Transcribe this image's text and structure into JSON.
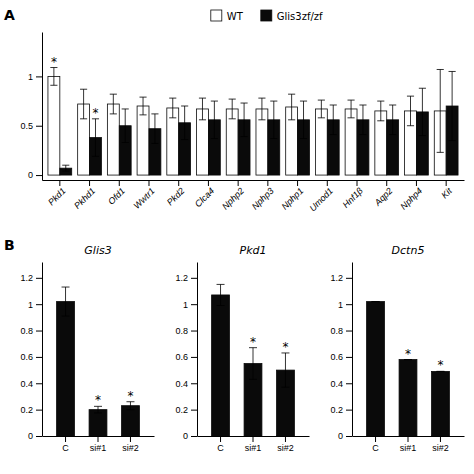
{
  "chart_data": [
    {
      "type": "bar",
      "categories": [
        "Pkd1",
        "Pkhd1",
        "Ofd1",
        "Wwtr1",
        "Pkd2",
        "Clca4",
        "Nphp2",
        "Nphp3",
        "Nphp1",
        "Umod1",
        "Hnf1β",
        "Aqp2",
        "Nphp4",
        "Kit"
      ],
      "series": [
        {
          "name": "WT",
          "color": "#ffffff",
          "values": [
            1.0,
            0.72,
            0.72,
            0.7,
            0.68,
            0.67,
            0.67,
            0.67,
            0.69,
            0.67,
            0.67,
            0.65,
            0.65,
            0.65
          ],
          "errors": [
            0.09,
            0.15,
            0.1,
            0.09,
            0.1,
            0.11,
            0.1,
            0.11,
            0.13,
            0.09,
            0.09,
            0.1,
            0.15,
            0.42
          ]
        },
        {
          "name": "Glis3zf/zf",
          "color": "#0a0a0a",
          "values": [
            0.07,
            0.38,
            0.5,
            0.47,
            0.53,
            0.56,
            0.56,
            0.56,
            0.56,
            0.56,
            0.56,
            0.56,
            0.64,
            0.7
          ],
          "errors": [
            0.03,
            0.19,
            0.17,
            0.15,
            0.17,
            0.19,
            0.17,
            0.19,
            0.19,
            0.15,
            0.15,
            0.15,
            0.24,
            0.35
          ]
        }
      ],
      "annotations": [
        {
          "text": "A"
        },
        {
          "text": "*",
          "category": "Pkd1",
          "series": "WT"
        },
        {
          "text": "*",
          "category": "Pkhd1",
          "series": "Glis3zf/zf"
        }
      ],
      "ylim": [
        -0.05,
        1.45
      ],
      "yticks": [
        0,
        0.5,
        1
      ],
      "legend": "top"
    },
    {
      "type": "bar",
      "title": "Glis3",
      "categories": [
        "C",
        "si#1",
        "si#2"
      ],
      "values": [
        1.02,
        0.2,
        0.23
      ],
      "errors": [
        0.11,
        0.025,
        0.03
      ],
      "color": "#0a0a0a",
      "annotations": [
        {
          "text": "B"
        },
        {
          "text": "*",
          "category": "si#1"
        },
        {
          "text": "*",
          "category": "si#2"
        }
      ],
      "ylim": [
        0,
        1.32
      ],
      "yticks": [
        0,
        0.2,
        0.4,
        0.6,
        0.8,
        1,
        1.2
      ]
    },
    {
      "type": "bar",
      "title": "Pkd1",
      "categories": [
        "C",
        "si#1",
        "si#2"
      ],
      "values": [
        1.07,
        0.55,
        0.5
      ],
      "errors": [
        0.08,
        0.12,
        0.13
      ],
      "color": "#0a0a0a",
      "annotations": [
        {
          "text": "*",
          "category": "si#1"
        },
        {
          "text": "*",
          "category": "si#2"
        }
      ],
      "ylim": [
        0,
        1.32
      ],
      "yticks": [
        0,
        0.2,
        0.4,
        0.6,
        0.8,
        1,
        1.2
      ]
    },
    {
      "type": "bar",
      "title": "Dctn5",
      "categories": [
        "C",
        "si#1",
        "si#2"
      ],
      "values": [
        1.02,
        0.58,
        0.49
      ],
      "errors": [
        0.0,
        0.0,
        0.0
      ],
      "color": "#0a0a0a",
      "annotations": [
        {
          "text": "*",
          "category": "si#1"
        },
        {
          "text": "*",
          "category": "si#2"
        }
      ],
      "ylim": [
        0,
        1.32
      ],
      "yticks": [
        0,
        0.2,
        0.4,
        0.6,
        0.8,
        1,
        1.2
      ]
    }
  ]
}
